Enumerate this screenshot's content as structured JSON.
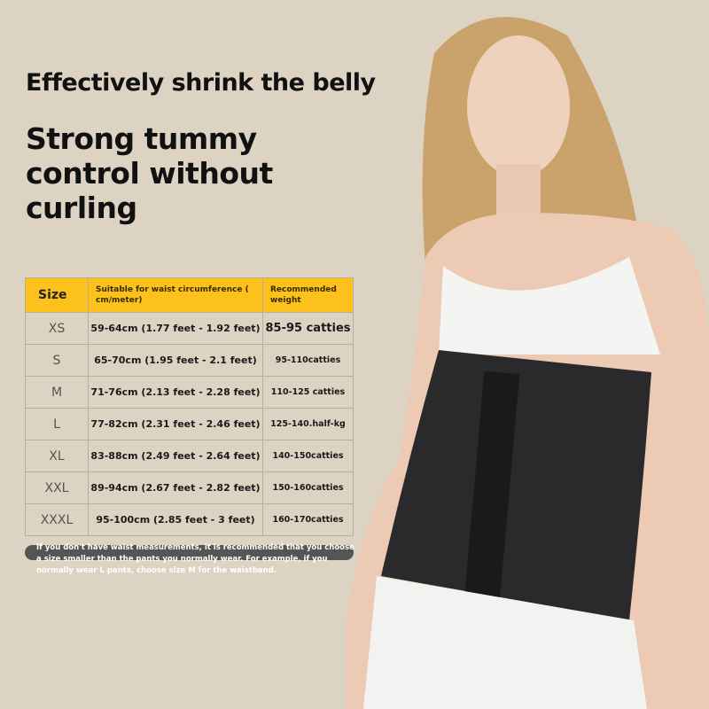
{
  "headline": "Effectively shrink the belly",
  "subheadline": "Strong tummy control without curling",
  "table": {
    "headers": [
      "Size",
      "Suitable for waist circumference ( cm/meter)",
      "Recommended weight"
    ],
    "rows": [
      [
        "XS",
        "59-64cm (1.77 feet - 1.92 feet)",
        "85-95 catties"
      ],
      [
        "S",
        "65-70cm (1.95 feet - 2.1 feet)",
        "95-110catties"
      ],
      [
        "M",
        "71-76cm (2.13 feet - 2.28 feet)",
        "110-125 catties"
      ],
      [
        "L",
        "77-82cm (2.31 feet - 2.46 feet)",
        "125-140.half-kg"
      ],
      [
        "XL",
        "83-88cm (2.49 feet - 2.64 feet)",
        "140-150catties"
      ],
      [
        "XXL",
        "89-94cm (2.67 feet - 2.82 feet)",
        "150-160catties"
      ],
      [
        "XXXL",
        "95-100cm (2.85 feet - 3 feet)",
        "160-170catties"
      ]
    ]
  },
  "note": "If you don't have waist measurements, it is recommended that you choose a size smaller than the pants you normally wear. For example, if you normally wear L pants, choose size M for the waistband.",
  "colors": {
    "background": "#ddd3c2",
    "header": "#fcc21b",
    "corset": "#2a2a2c"
  }
}
